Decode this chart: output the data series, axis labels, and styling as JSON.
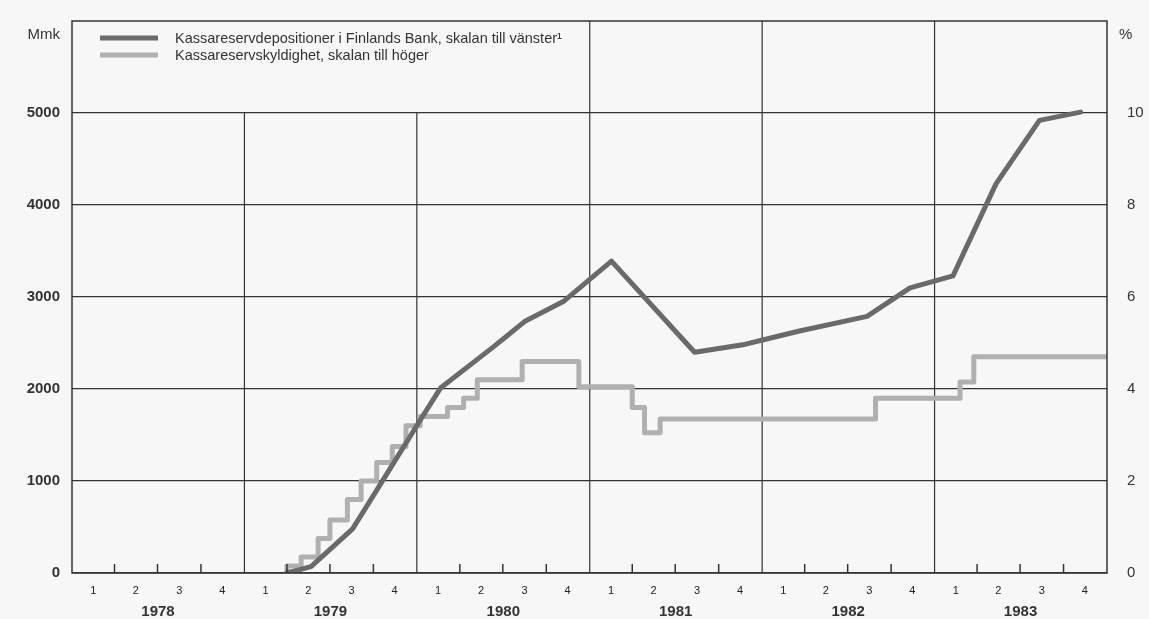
{
  "chart_data": {
    "type": "line",
    "ylabel": "Mmk",
    "y2label": "%",
    "xlim": [
      "1978-01-01",
      "1984-01-01"
    ],
    "xticks": [
      {
        "value": "1978-01-01",
        "label": null
      },
      {
        "value": "1978-07-02",
        "label": "1978"
      },
      {
        "value": "1979-01-01",
        "label": null
      },
      {
        "value": "1979-07-02",
        "label": "1979"
      },
      {
        "value": "1980-01-01",
        "label": null
      },
      {
        "value": "1980-07-02",
        "label": "1980"
      },
      {
        "value": "1981-01-01",
        "label": null
      },
      {
        "value": "1981-07-02",
        "label": "1981"
      },
      {
        "value": "1982-01-01",
        "label": null
      },
      {
        "value": "1982-07-02",
        "label": "1982"
      },
      {
        "value": "1983-01-01",
        "label": null
      },
      {
        "value": "1983-07-02",
        "label": "1983"
      },
      {
        "value": "1984-01-01",
        "label": null
      }
    ],
    "x2lim": [
      "1978-01-01",
      "1984-01-01"
    ],
    "x2ticks": [
      {
        "value": "1978-02-15",
        "label": "1"
      },
      {
        "value": "1978-04-01",
        "label": null
      },
      {
        "value": "1978-05-16",
        "label": "2"
      },
      {
        "value": "1978-07-01",
        "label": null
      },
      {
        "value": "1978-08-16",
        "label": "3"
      },
      {
        "value": "1978-10-01",
        "label": null
      },
      {
        "value": "1978-11-15",
        "label": "4"
      },
      {
        "value": "1979-02-15",
        "label": "1"
      },
      {
        "value": "1979-04-01",
        "label": null
      },
      {
        "value": "1979-05-16",
        "label": "2"
      },
      {
        "value": "1979-07-01",
        "label": null
      },
      {
        "value": "1979-08-16",
        "label": "3"
      },
      {
        "value": "1979-10-01",
        "label": null
      },
      {
        "value": "1979-11-15",
        "label": "4"
      },
      {
        "value": "1980-02-15",
        "label": "1"
      },
      {
        "value": "1980-04-01",
        "label": null
      },
      {
        "value": "1980-05-16",
        "label": "2"
      },
      {
        "value": "1980-07-01",
        "label": null
      },
      {
        "value": "1980-08-16",
        "label": "3"
      },
      {
        "value": "1980-10-01",
        "label": null
      },
      {
        "value": "1980-11-15",
        "label": "4"
      },
      {
        "value": "1981-02-15",
        "label": "1"
      },
      {
        "value": "1981-04-01",
        "label": null
      },
      {
        "value": "1981-05-16",
        "label": "2"
      },
      {
        "value": "1981-07-01",
        "label": null
      },
      {
        "value": "1981-08-16",
        "label": "3"
      },
      {
        "value": "1981-10-01",
        "label": null
      },
      {
        "value": "1981-11-15",
        "label": "4"
      },
      {
        "value": "1982-02-15",
        "label": "1"
      },
      {
        "value": "1982-04-01",
        "label": null
      },
      {
        "value": "1982-05-16",
        "label": "2"
      },
      {
        "value": "1982-07-01",
        "label": null
      },
      {
        "value": "1982-08-16",
        "label": "3"
      },
      {
        "value": "1982-10-01",
        "label": null
      },
      {
        "value": "1982-11-15",
        "label": "4"
      },
      {
        "value": "1983-02-15",
        "label": "1"
      },
      {
        "value": "1983-04-01",
        "label": null
      },
      {
        "value": "1983-05-16",
        "label": "2"
      },
      {
        "value": "1983-07-01",
        "label": null
      },
      {
        "value": "1983-08-16",
        "label": "3"
      },
      {
        "value": "1983-10-01",
        "label": null
      },
      {
        "value": "1983-11-15",
        "label": "4"
      }
    ],
    "ylim": [
      0,
      6000
    ],
    "yticks": [
      0,
      1000,
      2000,
      3000,
      4000,
      5000
    ],
    "y2lim": [
      0,
      12
    ],
    "y2ticks": [
      0,
      2,
      4,
      6,
      8,
      10
    ],
    "grid": true,
    "legend": "top left",
    "marker": "none",
    "line_style": "solid",
    "series": [
      {
        "name": "Kassareservdepositioner i Finlands Bank, skalan till vänster¹",
        "color": "#6a6a6a",
        "x": [
          "1979-04-01",
          "1979-05-22",
          "1979-08-18",
          "1979-10-19",
          "1980-01-08",
          "1980-02-20",
          "1980-06-09",
          "1980-08-18",
          "1980-11-06",
          "1981-02-16",
          "1981-08-11",
          "1981-11-21",
          "1982-03-21",
          "1982-08-11",
          "1982-11-10",
          "1983-02-09",
          "1983-05-11",
          "1983-08-11",
          "1983-11-06"
        ],
        "values": [
          0,
          70,
          480,
          990,
          1660,
          2010,
          2450,
          2740,
          2950,
          3390,
          2400,
          2480,
          2630,
          2790,
          3100,
          3230,
          4230,
          4920,
          5010
        ]
      },
      {
        "name": "Kassareservskyldighet, skalan till höger",
        "type": "step",
        "axis": "y2",
        "color": "#b0b0b0",
        "x": [
          "1979-04-01",
          "1979-05-01",
          "1979-06-06",
          "1979-07-01",
          "1979-08-07",
          "1979-09-05",
          "1979-10-08",
          "1979-11-10",
          "1979-12-09",
          "1980-01-08",
          "1980-03-06",
          "1980-04-09",
          "1980-05-08",
          "1980-08-11",
          "1980-12-09",
          "1981-04-01",
          "1981-04-27",
          "1981-05-30",
          "1982-08-29",
          "1983-02-24",
          "1983-03-25",
          "1983-04-23",
          "1984-01-01"
        ],
        "values": [
          0,
          0.15,
          0.35,
          0.75,
          1.15,
          1.6,
          2,
          2.4,
          2.75,
          3.2,
          3.4,
          3.6,
          3.8,
          4.2,
          4.6,
          4.05,
          3.6,
          3.05,
          3.35,
          3.8,
          4.15,
          4.7,
          4.7
        ]
      }
    ]
  }
}
